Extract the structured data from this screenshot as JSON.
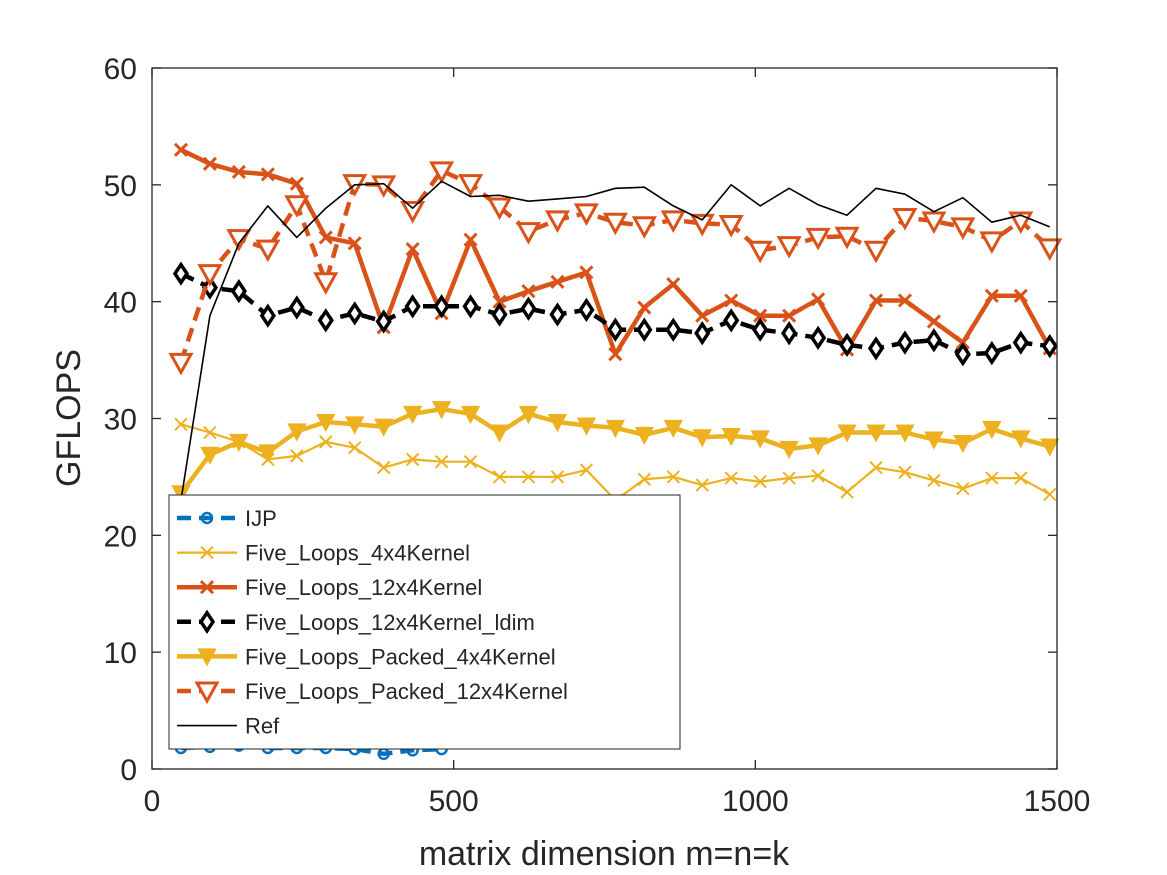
{
  "chart_data": {
    "type": "line",
    "title": "",
    "xlabel": "matrix dimension m=n=k",
    "ylabel": "GFLOPS",
    "xlim": [
      0,
      1500
    ],
    "ylim": [
      0,
      60
    ],
    "xticks": [
      0,
      500,
      1000,
      1500
    ],
    "yticks": [
      0,
      10,
      20,
      30,
      40,
      50,
      60
    ],
    "grid": false,
    "legend": "bottom-left",
    "series": [
      {
        "name": "IJP",
        "color": "#0072BD",
        "line": "dashed",
        "marker": "circle",
        "x": [
          48,
          96,
          144,
          192,
          240,
          288,
          336,
          384,
          432,
          480
        ],
        "y": [
          1.8,
          1.9,
          2.0,
          1.8,
          1.8,
          1.8,
          1.7,
          1.3,
          1.6,
          1.7
        ]
      },
      {
        "name": "Five_Loops_4x4Kernel",
        "color": "#EDB120",
        "line": "solid",
        "marker": "x",
        "x": [
          48,
          96,
          144,
          192,
          240,
          288,
          336,
          384,
          432,
          480,
          528,
          576,
          624,
          672,
          720,
          768,
          816,
          864,
          912,
          960,
          1008,
          1056,
          1104,
          1152,
          1200,
          1248,
          1296,
          1344,
          1392,
          1440,
          1488
        ],
        "y": [
          29.5,
          28.8,
          28.0,
          26.5,
          26.8,
          28.0,
          27.5,
          25.8,
          26.5,
          26.3,
          26.3,
          25.0,
          25.0,
          25.0,
          25.6,
          23.0,
          24.8,
          25.0,
          24.3,
          24.9,
          24.6,
          24.9,
          25.1,
          23.7,
          25.8,
          25.4,
          24.7,
          24.0,
          24.9,
          24.9,
          23.5
        ]
      },
      {
        "name": "Five_Loops_12x4Kernel",
        "color": "#D95319",
        "line": "solid",
        "marker": "x",
        "x": [
          48,
          96,
          144,
          192,
          240,
          288,
          336,
          384,
          432,
          480,
          528,
          576,
          624,
          672,
          720,
          768,
          816,
          864,
          912,
          960,
          1008,
          1056,
          1104,
          1152,
          1200,
          1248,
          1296,
          1344,
          1392,
          1440,
          1488
        ],
        "y": [
          53.0,
          51.8,
          51.1,
          50.9,
          50.1,
          45.5,
          45.0,
          37.8,
          44.5,
          39.0,
          45.3,
          40.0,
          40.9,
          41.7,
          42.5,
          35.5,
          39.5,
          41.5,
          38.8,
          40.1,
          38.8,
          38.8,
          40.2,
          35.9,
          40.1,
          40.1,
          38.3,
          36.5,
          40.5,
          40.5,
          36.0
        ]
      },
      {
        "name": "Five_Loops_12x4Kernel_ldim",
        "color": "#000000",
        "line": "dashed",
        "marker": "diamond",
        "x": [
          48,
          96,
          144,
          192,
          240,
          288,
          336,
          384,
          432,
          480,
          528,
          576,
          624,
          672,
          720,
          768,
          816,
          864,
          912,
          960,
          1008,
          1056,
          1104,
          1152,
          1200,
          1248,
          1296,
          1344,
          1392,
          1440,
          1488
        ],
        "y": [
          42.4,
          41.2,
          40.9,
          38.8,
          39.5,
          38.4,
          39.0,
          38.3,
          39.6,
          39.6,
          39.6,
          38.9,
          39.4,
          38.9,
          39.3,
          37.6,
          37.6,
          37.6,
          37.3,
          38.4,
          37.6,
          37.3,
          36.9,
          36.3,
          36.0,
          36.5,
          36.7,
          35.5,
          35.6,
          36.5,
          36.2
        ]
      },
      {
        "name": "Five_Loops_Packed_4x4Kernel",
        "color": "#EDB120",
        "line": "solid",
        "marker": "filled-triangle",
        "x": [
          48,
          96,
          144,
          192,
          240,
          288,
          336,
          384,
          432,
          480,
          528,
          576,
          624,
          672,
          720,
          768,
          816,
          864,
          912,
          960,
          1008,
          1056,
          1104,
          1152,
          1200,
          1248,
          1296,
          1344,
          1392,
          1440,
          1488
        ],
        "y": [
          23.6,
          26.9,
          28.0,
          27.1,
          28.9,
          29.7,
          29.5,
          29.3,
          30.4,
          30.8,
          30.4,
          28.8,
          30.4,
          29.7,
          29.4,
          29.2,
          28.6,
          29.2,
          28.4,
          28.5,
          28.3,
          27.4,
          27.7,
          28.8,
          28.8,
          28.8,
          28.2,
          27.9,
          29.1,
          28.3,
          27.6
        ]
      },
      {
        "name": "Five_Loops_Packed_12x4Kernel",
        "color": "#D95319",
        "line": "dashed",
        "marker": "open-triangle",
        "x": [
          48,
          96,
          144,
          192,
          240,
          288,
          336,
          384,
          432,
          480,
          528,
          576,
          624,
          672,
          720,
          768,
          816,
          864,
          912,
          960,
          1008,
          1056,
          1104,
          1152,
          1200,
          1248,
          1296,
          1344,
          1392,
          1440,
          1488
        ],
        "y": [
          34.8,
          42.4,
          45.4,
          44.5,
          48.3,
          41.7,
          50.1,
          50.0,
          47.8,
          51.2,
          50.1,
          48.1,
          46.0,
          47.0,
          47.6,
          46.8,
          46.5,
          47.0,
          46.7,
          46.6,
          44.4,
          44.8,
          45.5,
          45.6,
          44.4,
          47.2,
          46.9,
          46.4,
          45.2,
          46.9,
          44.6
        ]
      },
      {
        "name": "Ref",
        "color": "#000000",
        "line": "solid",
        "marker": "none",
        "x": [
          48,
          96,
          144,
          192,
          240,
          288,
          336,
          384,
          432,
          480,
          528,
          576,
          624,
          672,
          720,
          768,
          816,
          864,
          912,
          960,
          1008,
          1056,
          1104,
          1152,
          1200,
          1248,
          1296,
          1344,
          1392,
          1440,
          1488
        ],
        "y": [
          23.0,
          38.8,
          45.0,
          48.2,
          45.5,
          48.0,
          50.0,
          50.1,
          48.0,
          50.3,
          49.0,
          49.1,
          48.6,
          48.8,
          49.0,
          49.7,
          49.8,
          48.2,
          47.0,
          50.0,
          48.2,
          49.7,
          48.3,
          47.4,
          49.7,
          49.2,
          47.7,
          48.9,
          46.8,
          47.4,
          46.4
        ]
      }
    ]
  }
}
